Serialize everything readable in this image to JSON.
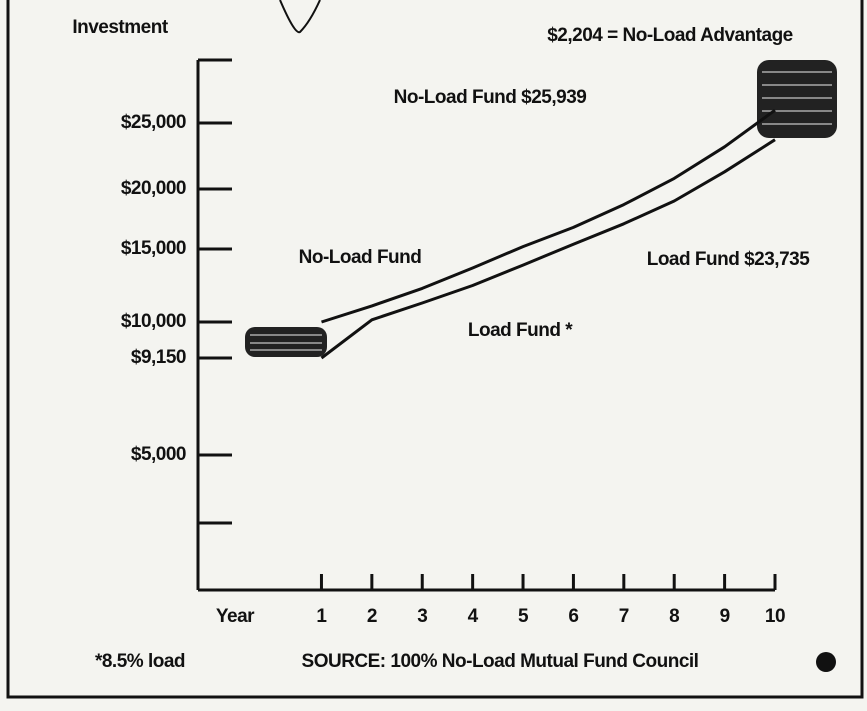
{
  "chart_data": {
    "type": "line",
    "title": "Investment",
    "annotations": [
      "$2,204 = No-Load Advantage",
      "No-Load Fund $25,939",
      "Load Fund $23,735"
    ],
    "x_label": "Year",
    "footnote": "*8.5% load",
    "source": "SOURCE: 100% No-Load Mutual Fund Council",
    "x": [
      1,
      2,
      3,
      4,
      5,
      6,
      7,
      8,
      9,
      10
    ],
    "series": [
      {
        "name": "No-Load Fund",
        "color": "#111111",
        "values": [
          10000,
          11100,
          12300,
          13700,
          15200,
          16800,
          18700,
          20800,
          23200,
          25939
        ]
      },
      {
        "name": "Load Fund *",
        "color": "#111111",
        "values": [
          9150,
          10150,
          11300,
          12500,
          13900,
          15400,
          17100,
          19000,
          21300,
          23735
        ]
      }
    ],
    "xlim": [
      -1.45,
      10
    ],
    "xticks": [
      1,
      2,
      3,
      4,
      5,
      6,
      7,
      8,
      9,
      10
    ],
    "ylim": [
      0,
      30000
    ],
    "yticks": [
      {
        "value": 5000,
        "label": "$5,000"
      },
      {
        "value": 9150,
        "label": "$9,150"
      },
      {
        "value": 10000,
        "label": "$10,000"
      },
      {
        "value": 15000,
        "label": "$15,000"
      },
      {
        "value": 20000,
        "label": "$20,000"
      },
      {
        "value": 25000,
        "label": "$25,000"
      }
    ],
    "grid": false
  }
}
